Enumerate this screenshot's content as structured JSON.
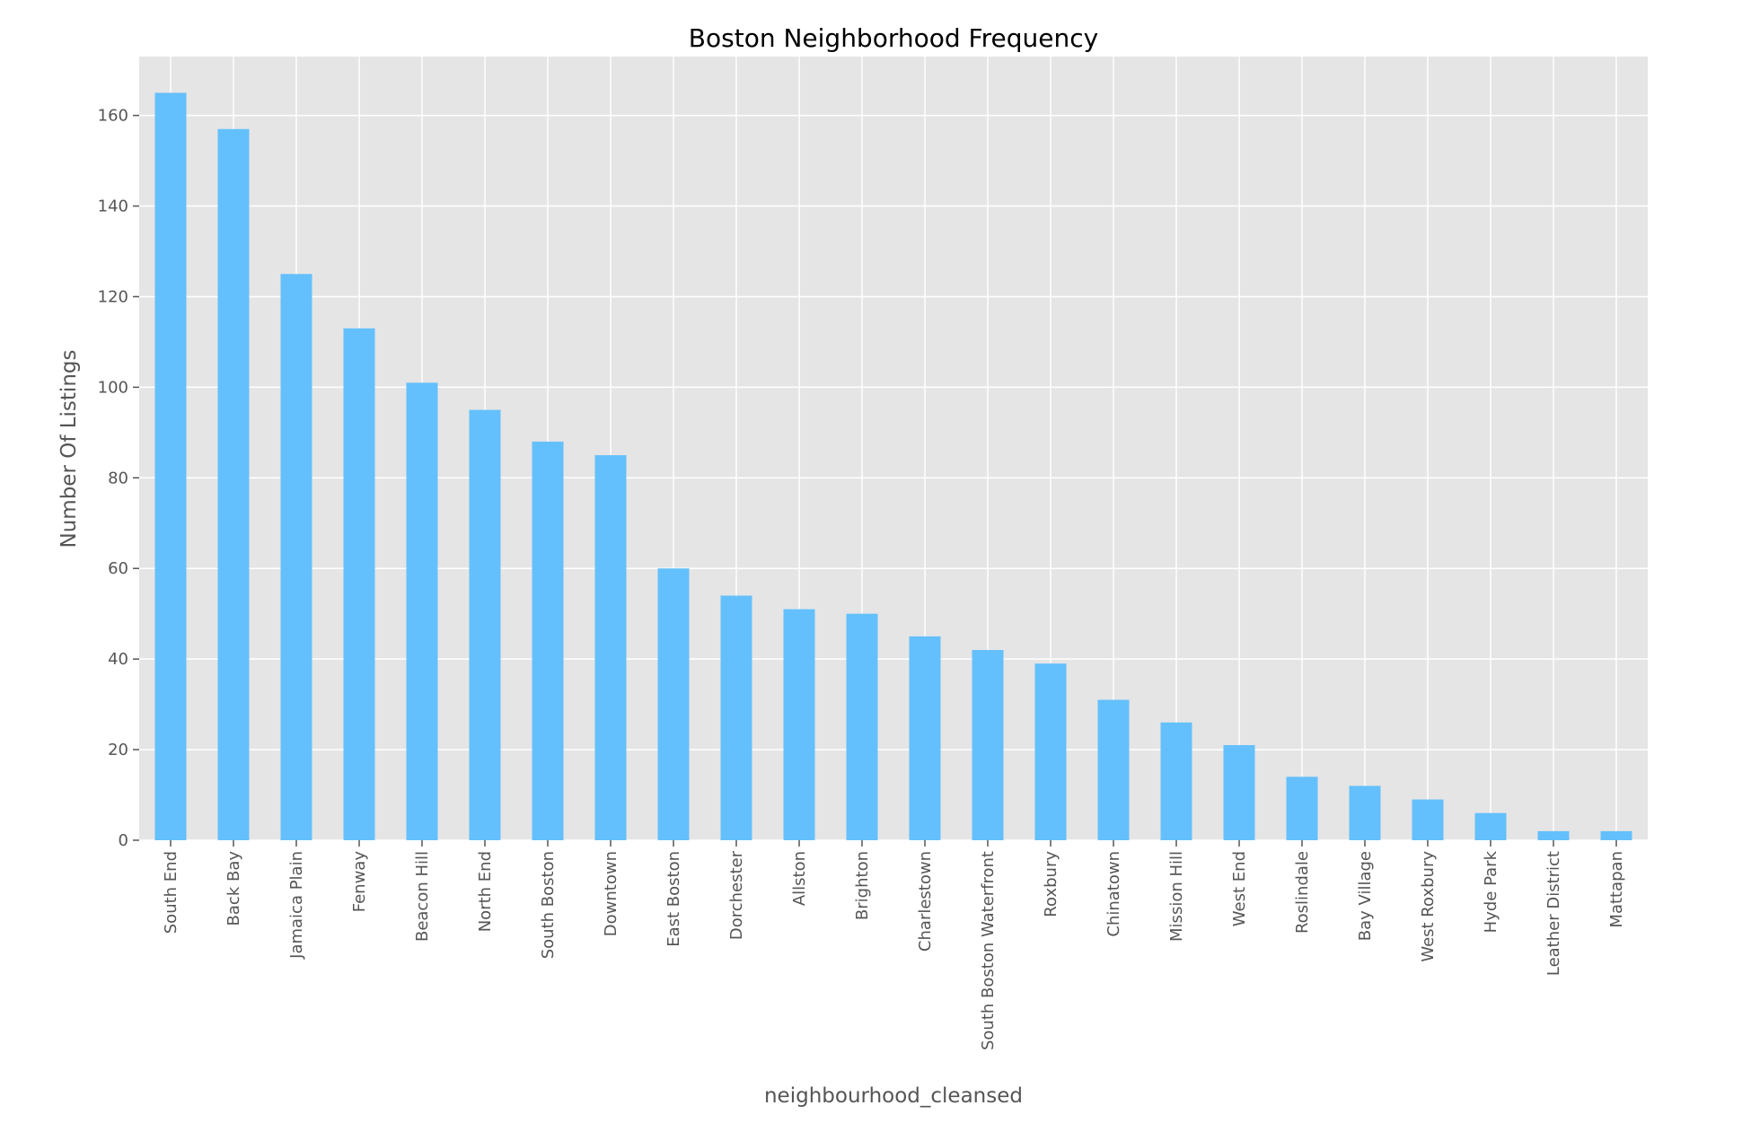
{
  "chart_data": {
    "type": "bar",
    "title": "Boston Neighborhood Frequency",
    "xlabel": "neighbourhood_cleansed",
    "ylabel": "Number Of Listings",
    "categories": [
      "South End",
      "Back Bay",
      "Jamaica Plain",
      "Fenway",
      "Beacon Hill",
      "North End",
      "South Boston",
      "Downtown",
      "East Boston",
      "Dorchester",
      "Allston",
      "Brighton",
      "Charlestown",
      "South Boston Waterfront",
      "Roxbury",
      "Chinatown",
      "Mission Hill",
      "West End",
      "Roslindale",
      "Bay Village",
      "West Roxbury",
      "Hyde Park",
      "Leather District",
      "Mattapan"
    ],
    "values": [
      165,
      157,
      125,
      113,
      101,
      95,
      88,
      85,
      60,
      54,
      51,
      50,
      45,
      42,
      39,
      31,
      26,
      21,
      14,
      12,
      9,
      6,
      2,
      2
    ],
    "ylim": [
      0,
      173
    ],
    "yticks": [
      0,
      20,
      40,
      60,
      80,
      100,
      120,
      140,
      160
    ],
    "grid": true,
    "bar_color": "#64c0fc",
    "plot_background": "#e5e5e5",
    "grid_color": "#ffffff"
  }
}
